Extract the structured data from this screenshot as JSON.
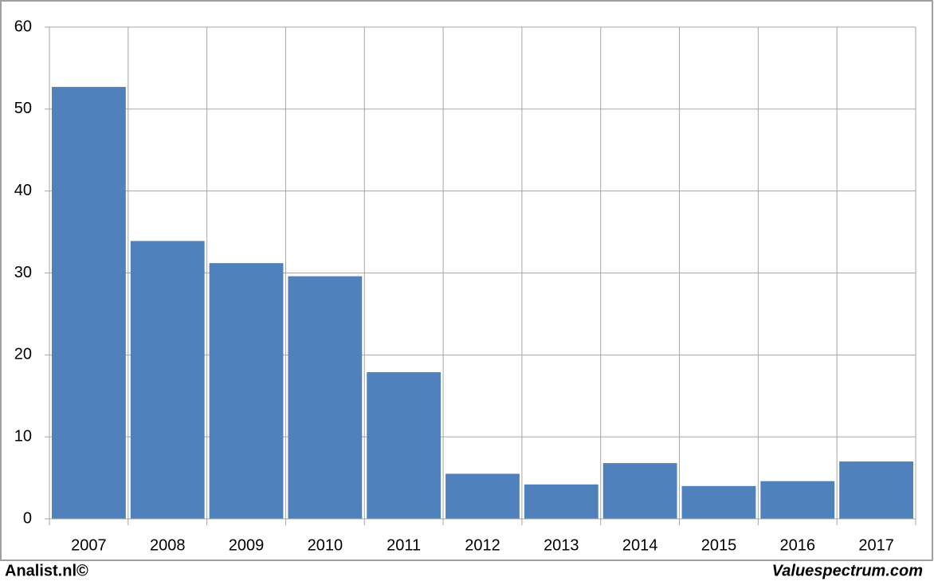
{
  "chart_data": {
    "type": "bar",
    "categories": [
      "2007",
      "2008",
      "2009",
      "2010",
      "2011",
      "2012",
      "2013",
      "2014",
      "2015",
      "2016",
      "2017"
    ],
    "values": [
      52.7,
      33.9,
      31.2,
      29.6,
      17.9,
      5.5,
      4.2,
      6.8,
      4.0,
      4.6,
      7.0
    ],
    "color": "#4f81bd",
    "ylim": [
      0,
      60
    ],
    "yticks": [
      0,
      10,
      20,
      30,
      40,
      50,
      60
    ],
    "grid": true,
    "credit_left": "Analist.nl©",
    "credit_right": "Valuespectrum.com"
  }
}
